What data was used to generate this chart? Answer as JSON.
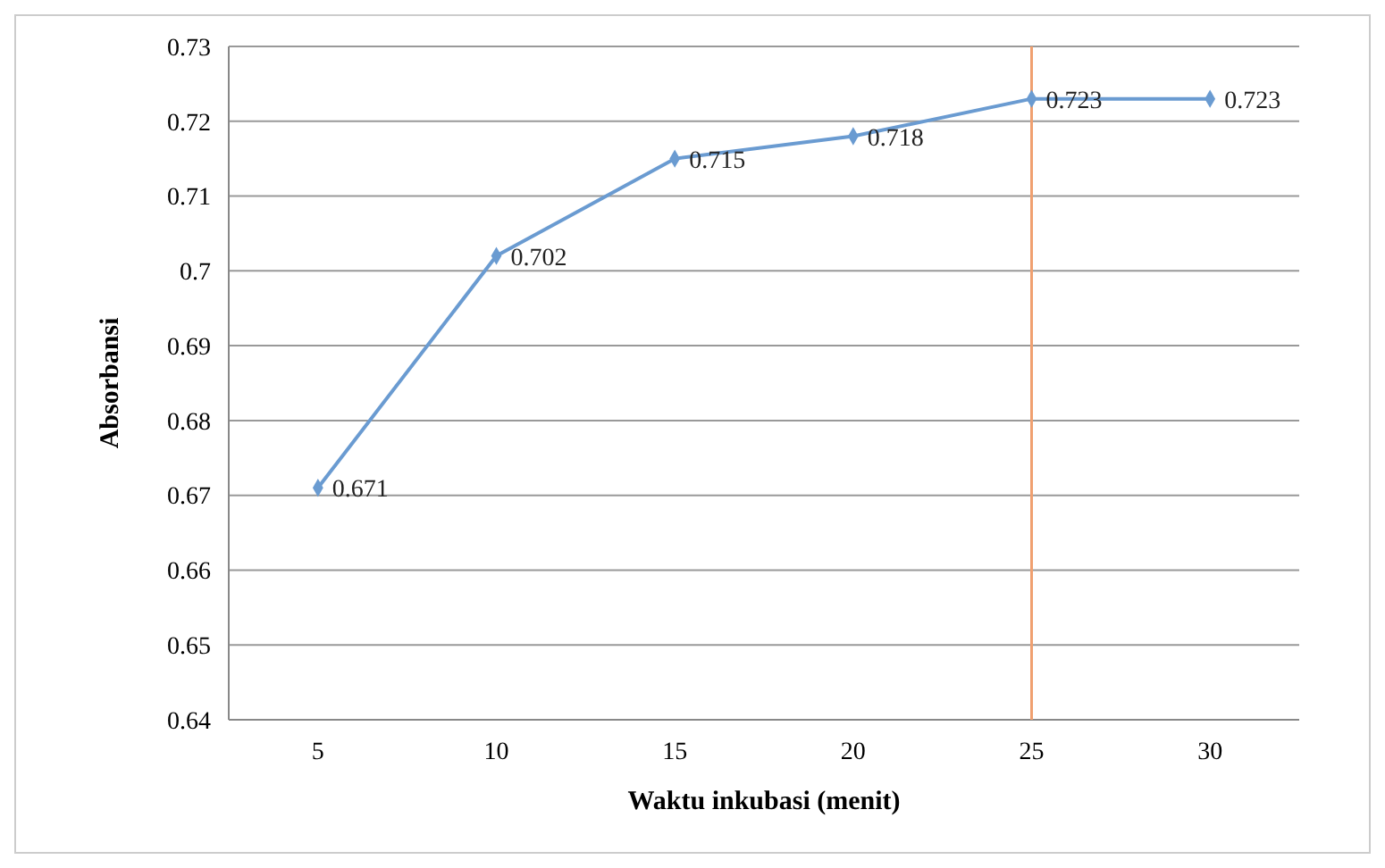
{
  "chart_data": {
    "type": "line",
    "xlabel": "Waktu inkubasi  (menit)",
    "ylabel": "Absorbansi",
    "categories": [
      "5",
      "10",
      "15",
      "20",
      "25",
      "30"
    ],
    "series": [
      {
        "color": "#6a9bd1",
        "values": [
          0.671,
          0.702,
          0.715,
          0.718,
          0.723,
          0.723
        ]
      }
    ],
    "ylim": [
      0.64,
      0.73
    ],
    "yticks": [
      0.64,
      0.65,
      0.66,
      0.67,
      0.68,
      0.69,
      0.7,
      0.71,
      0.72,
      0.73
    ],
    "grid": "y",
    "marker": "diamond",
    "data_labels": true,
    "ref_lines": [
      {
        "axis": "x",
        "value": "25",
        "color": "#f0a070"
      }
    ]
  }
}
